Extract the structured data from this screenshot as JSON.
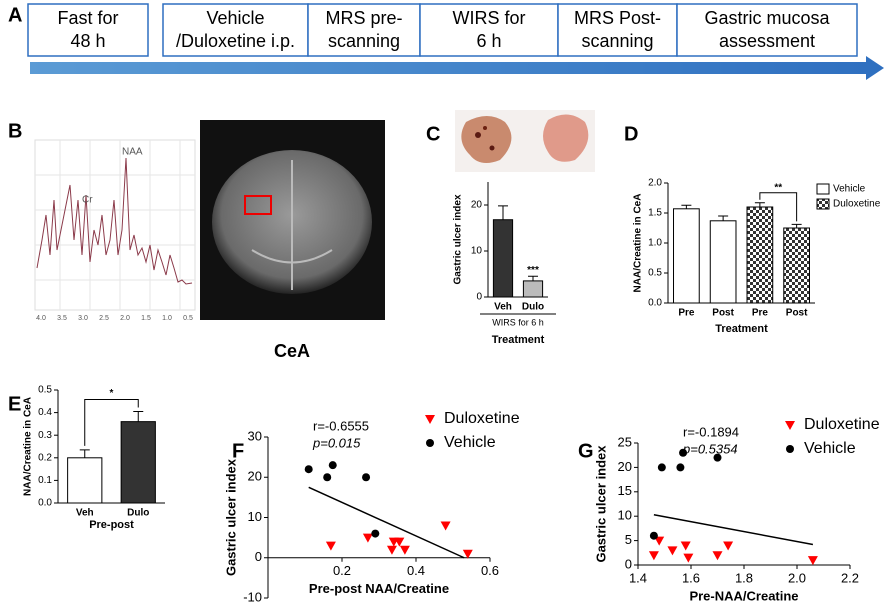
{
  "panel_labels": [
    "A",
    "B",
    "C",
    "D",
    "E",
    "F",
    "G"
  ],
  "timeline": {
    "steps": [
      [
        "Fast for",
        "48 h"
      ],
      [
        "Vehicle",
        "/Duloxetine i.p."
      ],
      [
        "MRS pre-",
        "scanning"
      ],
      [
        "WIRS for",
        "6 h"
      ],
      [
        "MRS Post-",
        "scanning"
      ],
      [
        "Gastric mucosa",
        "assessment"
      ]
    ]
  },
  "spectrum": {
    "peak_labels": [
      "NAA",
      "Cr"
    ],
    "axis_labels": [
      "4.0",
      "3.5",
      "3.0",
      "2.5",
      "2.0",
      "1.5",
      "1.0",
      "0.5"
    ],
    "image_label": "CeA"
  },
  "chart_data": [
    {
      "type": "bar",
      "ylabel": "Gastric ulcer index",
      "categories": [
        "Veh",
        "Dulo"
      ],
      "values": [
        16.8,
        3.5
      ],
      "errors": [
        3.0,
        1.0
      ],
      "colors": [
        "#333333",
        "#bbbbbb"
      ],
      "ylim": [
        0,
        25
      ],
      "yticks": [
        0,
        10,
        20
      ],
      "annotation": "***",
      "group_label": "WIRS for 6 h",
      "xlabel": "Treatment"
    },
    {
      "type": "grouped_bar",
      "ylabel": "NAA/Creatine in CeA",
      "xlabel": "Treatment",
      "categories": [
        "Pre",
        "Post"
      ],
      "series": [
        {
          "name": "Vehicle",
          "color": "#ffffff",
          "pattern": "none",
          "values": [
            1.57,
            1.37
          ],
          "errors": [
            0.06,
            0.08
          ]
        },
        {
          "name": "Duloxetine",
          "color": "#ffffff",
          "pattern": "checker",
          "values": [
            1.6,
            1.25
          ],
          "errors": [
            0.07,
            0.06
          ]
        }
      ],
      "ylim": [
        0,
        2.0
      ],
      "yticks": [
        {
          "value": 0,
          "label": "0.0"
        },
        {
          "value": 0.5,
          "label": "0.5"
        },
        {
          "value": 1.0,
          "label": "1.0"
        },
        {
          "value": 1.5,
          "label": "1.5"
        },
        {
          "value": 2.0,
          "label": "2.0"
        }
      ],
      "annotation": "**",
      "legend": "upper right"
    },
    {
      "type": "bar",
      "ylabel": "NAA/Creatine in CeA",
      "categories": [
        "Veh",
        "Dulo"
      ],
      "values": [
        0.2,
        0.36
      ],
      "errors": [
        0.035,
        0.045
      ],
      "colors": [
        "#ffffff",
        "#333333"
      ],
      "ylim": [
        0,
        0.5
      ],
      "yticks": [
        {
          "value": 0,
          "label": "0.0"
        },
        0.1,
        0.2,
        0.3,
        0.4,
        0.5
      ],
      "significance": "*",
      "xlabel": "Pre-post"
    },
    {
      "type": "scatter",
      "xlabel": "Pre-post NAA/Creatine",
      "ylabel": "Gastric ulcer index",
      "xlim": [
        0,
        0.6
      ],
      "xticks": [
        0.2,
        0.4,
        0.6
      ],
      "ylim": [
        -10,
        30
      ],
      "yticks": [
        -10,
        0,
        10,
        20,
        30
      ],
      "series": [
        {
          "name": "Duloxetine",
          "color": "#ff0000",
          "marker": "triangle-down",
          "x": [
            0.17,
            0.27,
            0.335,
            0.34,
            0.355,
            0.37,
            0.48,
            0.54
          ],
          "y": [
            3,
            5,
            2,
            4,
            4,
            2,
            8,
            1
          ]
        },
        {
          "name": "Vehicle",
          "color": "#000000",
          "marker": "circle",
          "x": [
            0.11,
            0.16,
            0.175,
            0.265,
            0.29
          ],
          "y": [
            22,
            20,
            23,
            20,
            6
          ]
        }
      ],
      "trendline": {
        "x": [
          0.11,
          0.53
        ],
        "y": [
          17.5,
          0
        ]
      },
      "annotations": [
        "r=-0.6555",
        "p=0.015"
      ],
      "legend": "upper right"
    },
    {
      "type": "scatter",
      "xlabel": "Pre-NAA/Creatine",
      "ylabel": "Gastric ulcer index",
      "xlim": [
        1.4,
        2.2
      ],
      "xticks": [
        1.4,
        1.6,
        1.8,
        {
          "value": 2.0,
          "label": "2.0"
        },
        2.2
      ],
      "ylim": [
        0,
        25
      ],
      "yticks": [
        0,
        5,
        10,
        15,
        20,
        25
      ],
      "series": [
        {
          "name": "Duloxetine",
          "color": "#ff0000",
          "marker": "triangle-down",
          "x": [
            1.46,
            1.48,
            1.53,
            1.58,
            1.59,
            1.7,
            1.74,
            2.06
          ],
          "y": [
            2,
            5,
            3,
            4,
            1.5,
            2,
            4,
            1
          ]
        },
        {
          "name": "Vehicle",
          "color": "#000000",
          "marker": "circle",
          "x": [
            1.46,
            1.49,
            1.56,
            1.57,
            1.7
          ],
          "y": [
            6,
            20,
            20,
            23,
            22
          ]
        }
      ],
      "trendline": {
        "x": [
          1.46,
          2.06
        ],
        "y": [
          10.3,
          4.2
        ]
      },
      "annotations": [
        "r=-0.1894",
        "p=0.5354"
      ],
      "legend": "upper right"
    }
  ]
}
